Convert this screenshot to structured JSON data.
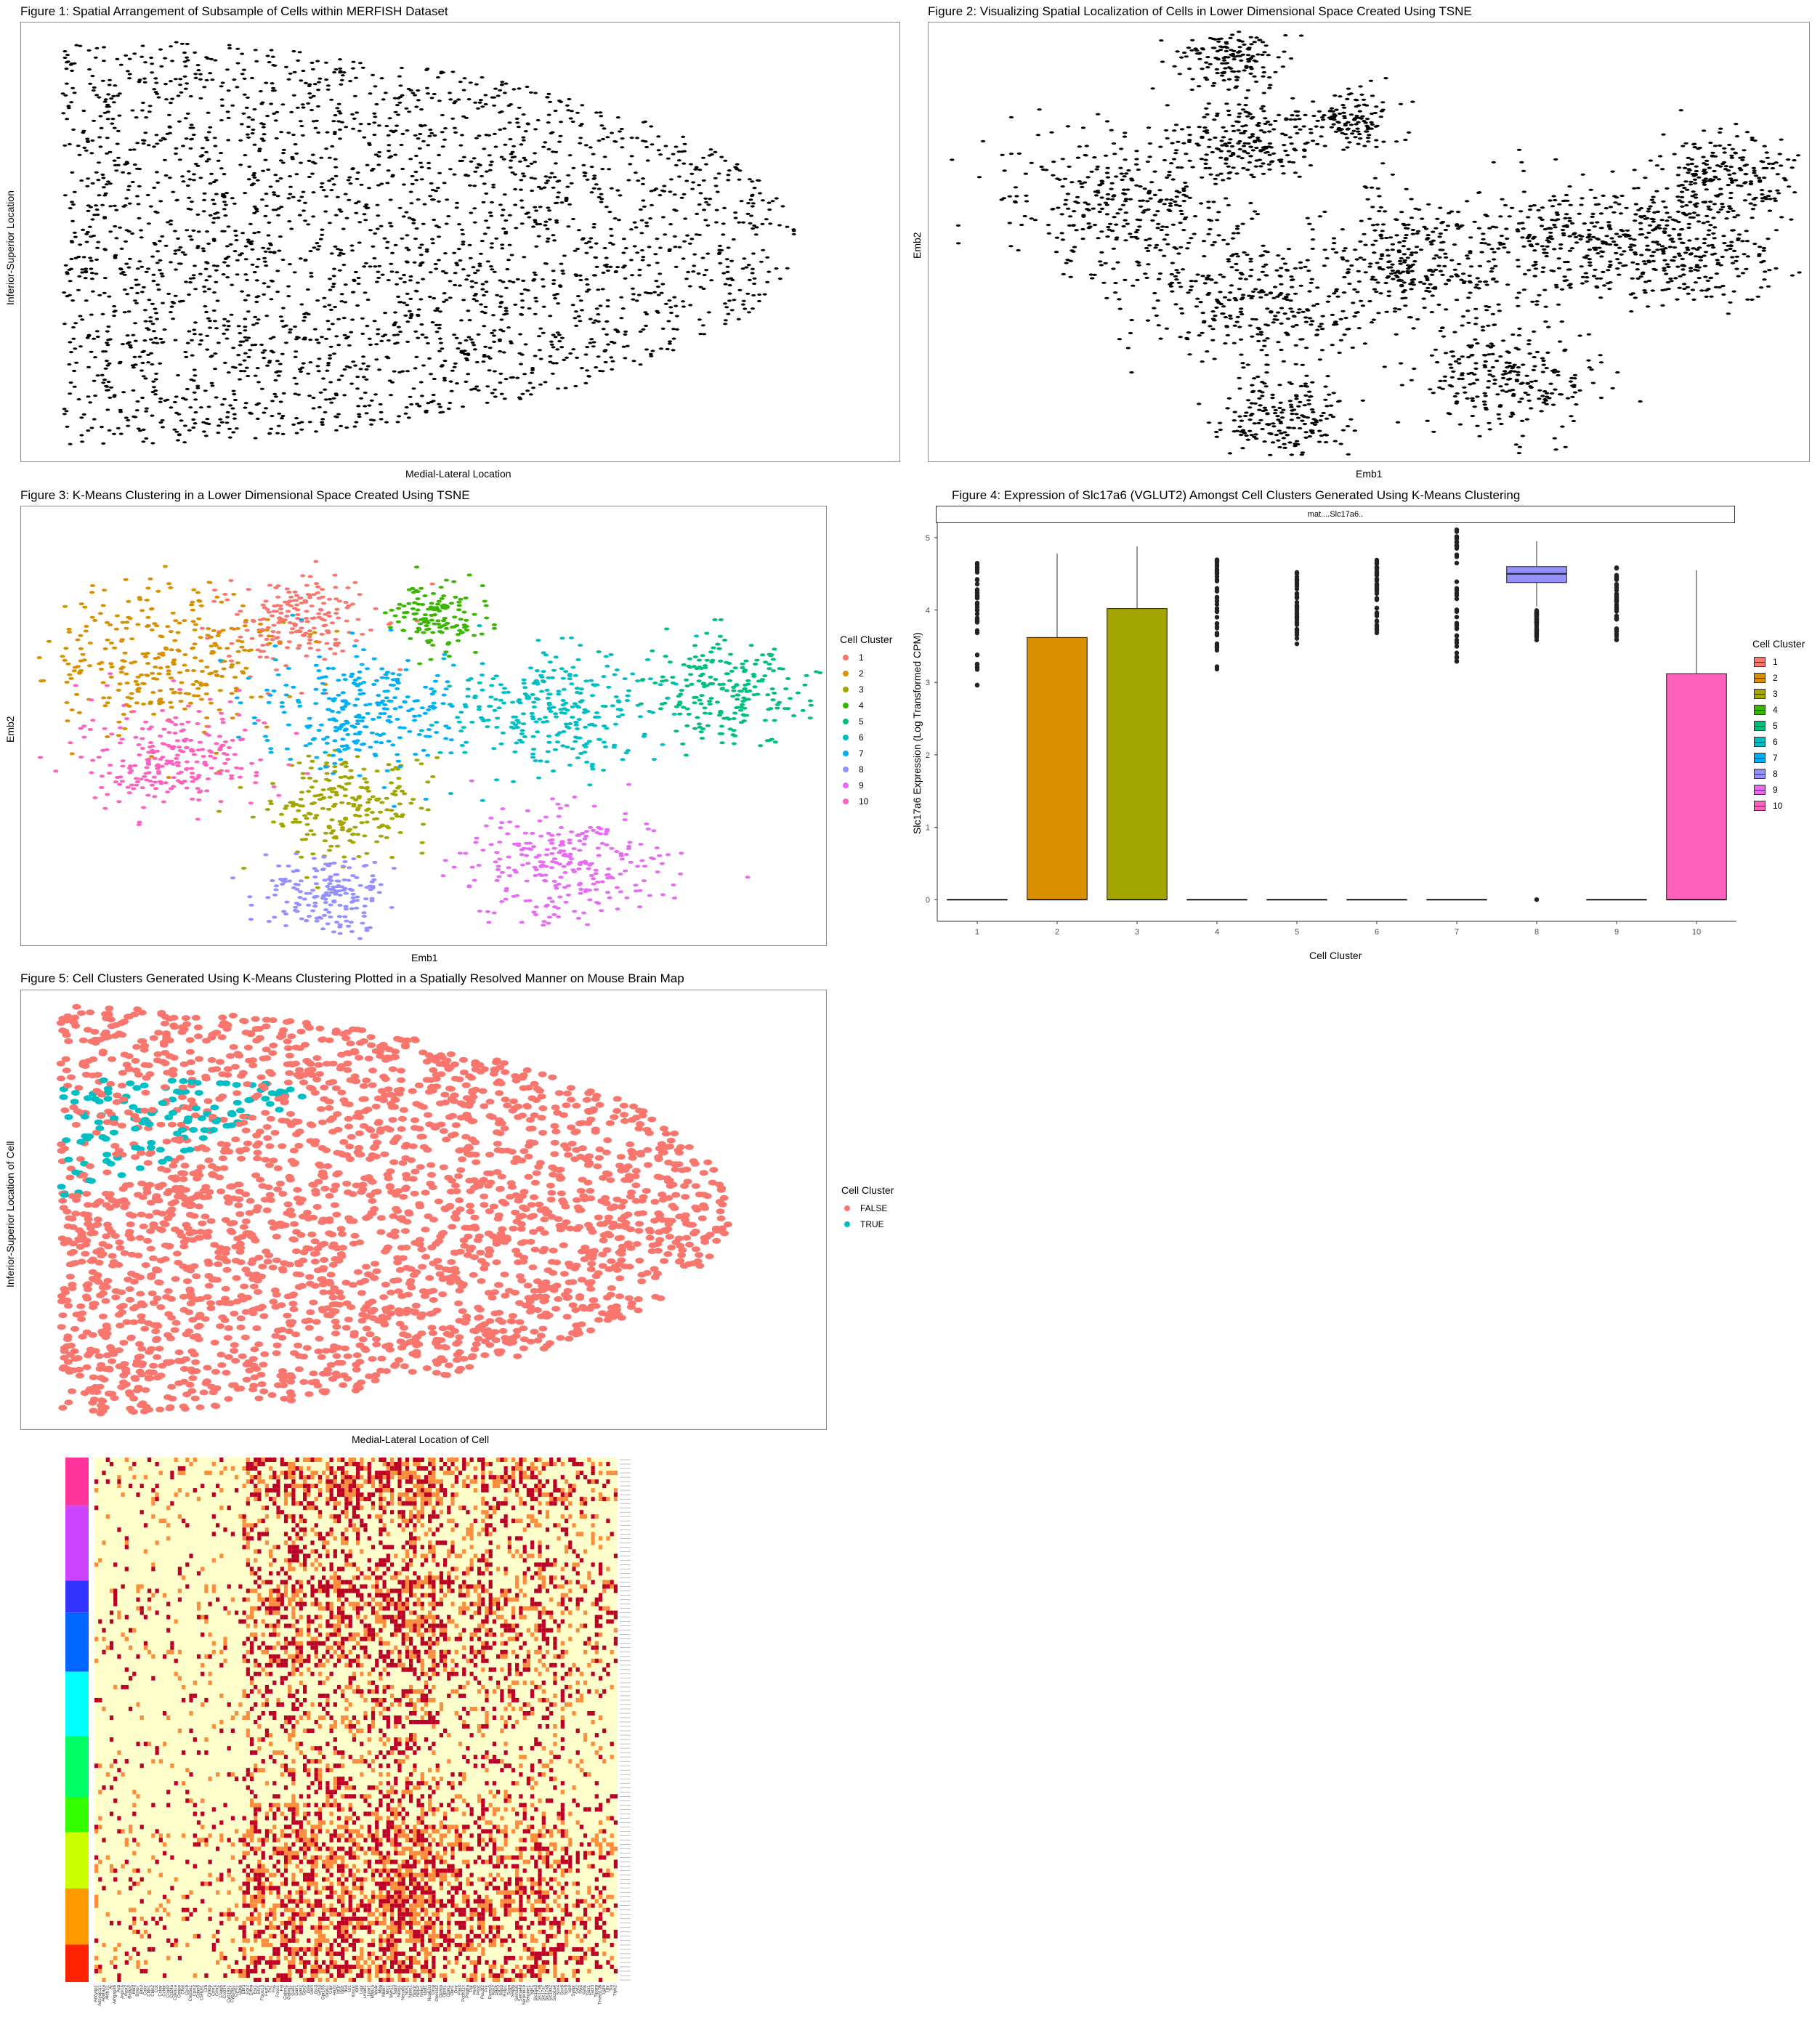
{
  "figures": {
    "fig1": {
      "title": "Figure 1: Spatial Arrangement of Subsample of Cells within MERFISH Dataset",
      "xlabel": "Medial-Lateral Location",
      "ylabel": "Inferior-Superior Location"
    },
    "fig2": {
      "title": "Figure 2: Visualizing Spatial Localization of Cells in Lower Dimensional Space Created Using TSNE",
      "xlabel": "Emb1",
      "ylabel": "Emb2"
    },
    "fig3": {
      "title": "Figure 3: K-Means Clustering in a Lower Dimensional Space Created Using TSNE",
      "xlabel": "Emb1",
      "ylabel": "Emb2",
      "legend_title": "Cell Cluster"
    },
    "fig4": {
      "title": "Figure 4: Expression of Slc17a6 (VGLUT2) Amongst Cell Clusters Generated Using K-Means Clustering",
      "xlabel": "Cell Cluster",
      "ylabel": "Slc17a6 Expression (Log Transformed CPM)",
      "strip": "mat....Slc17a6..",
      "legend_title": "Cell Cluster"
    },
    "fig5": {
      "title": "Figure 5: Cell Clusters Generated Using K-Means Clustering Plotted in a Spatially Resolved Manner on Mouse Brain Map",
      "xlabel": "Medial-Lateral Location of Cell",
      "ylabel": "Inferior-Superior Location of Cell",
      "legend_title": "Cell Cluster"
    }
  },
  "cluster_labels": [
    "1",
    "2",
    "3",
    "4",
    "5",
    "6",
    "7",
    "8",
    "9",
    "10"
  ],
  "cluster_colors": [
    "#F8766D",
    "#D89000",
    "#A3A500",
    "#39B600",
    "#00BF7D",
    "#00BFC4",
    "#00B0F6",
    "#9590FF",
    "#E76BF3",
    "#FF62BC"
  ],
  "fig5_legend": [
    {
      "label": "FALSE",
      "color": "#F8766D"
    },
    {
      "label": "TRUE",
      "color": "#00BFC4"
    }
  ],
  "heatmap": {
    "row_annotation_colors": [
      "#FF3399",
      "#CC44FF",
      "#3333FF",
      "#0066FF",
      "#00FFFF",
      "#00FF66",
      "#33FF00",
      "#CCFF00",
      "#FF9900",
      "#FF2200"
    ],
    "row_annotation_fracs": [
      0.09,
      0.14,
      0.06,
      0.11,
      0.12,
      0.115,
      0.065,
      0.105,
      0.105,
      0.07
    ],
    "low_color": "#FFFFCC",
    "mid_color": "#FD8D3C",
    "high_color": "#BD0026",
    "column_genes": [
      "Adcyap1",
      "Adcyap1r1",
      "Adora2a",
      "Aldh1l1",
      "Ar",
      "Arhgap36",
      "Avp",
      "Avpr1a",
      "Avpr2",
      "Baiap2",
      "Bdnf",
      "Bmp7",
      "Brs3",
      "Calcr",
      "Cbln1",
      "Cbln2",
      "Cck",
      "Cckar",
      "Cckbr",
      "Ccnd2",
      "Cd24a",
      "Cdkn1a",
      "Cenpe",
      "Chat",
      "Coch",
      "Col25a1",
      "Cplx3",
      "Cpne5",
      "Creb3l1",
      "Crh",
      "Crhbp",
      "Crhr1",
      "Crhr2",
      "Cspg5",
      "Cxcl14",
      "Cyp19a1",
      "Cyp26a1",
      "Cyr61",
      "Dgkk",
      "Ebf3",
      "Egr2",
      "Ermn",
      "Esr1",
      "Etv1",
      "Fbxw13",
      "Fezf1",
      "Fn1",
      "Fos",
      "Foxo1",
      "Fst",
      "Gabra1",
      "Gabrg1",
      "Gad1",
      "Galr1",
      "Galr2",
      "Gbx2",
      "Gda",
      "Gem",
      "Gjc3",
      "Glra3",
      "Gpr165",
      "Greb1",
      "Grpr",
      "Htr2c",
      "Igf1r",
      "Igf2r",
      "Irs4",
      "Isl1",
      "Kiss1r",
      "Klf4",
      "Lepr",
      "Lmod1",
      "Lpar1",
      "Man1a",
      "Mc4r",
      "Mbp",
      "Mki67",
      "Mlc1",
      "Myh11",
      "Ndnf",
      "Ndrg1",
      "Necab1",
      "Nos1",
      "Npas1",
      "Npy1r",
      "Npy2r",
      "Ntng1",
      "Ntsr1",
      "Nup62cl",
      "Omp",
      "Onecut2",
      "Opalin",
      "Oprd1",
      "Oprk1",
      "Oprl1",
      "Oxtr",
      "Pak3",
      "Pcdh11x",
      "Pdgfra",
      "Pgr",
      "Plin3",
      "Pnoc",
      "Pou3f2",
      "Prlr",
      "Ramp3",
      "Rgs2",
      "Rgs5",
      "Rnd3",
      "Rxfp1",
      "Scgn",
      "Selplg",
      "Sema3c",
      "Sema4d",
      "Serpinb1b",
      "Serpine1",
      "Sgk1",
      "Slc15a3",
      "Slc17a6",
      "Slc17a7",
      "Slc17a8",
      "Slc18a2",
      "Slco1a4",
      "Sox4",
      "Sox6",
      "Sox8",
      "Sp9",
      "Synpr",
      "Syt2",
      "Syt4",
      "Sytl4",
      "Tacr1",
      "Tacr3",
      "Tiparp",
      "Tmem108",
      "Traf4",
      "Trhr",
      "Ttn",
      "Ttyh2"
    ]
  },
  "chart_data": [
    {
      "type": "scatter",
      "title": "Figure 1: Spatial Arrangement of Subsample of Cells within MERFISH Dataset",
      "xlabel": "Medial-Lateral Location",
      "ylabel": "Inferior-Superior Location",
      "grid": false,
      "color": "#000000",
      "point_count_approx": 3000,
      "shape_description": "half-ellipse brain section, flat left edge, rounded right edge"
    },
    {
      "type": "scatter",
      "title": "Figure 2: Visualizing Spatial Localization of Cells in Lower Dimensional Space Created Using TSNE",
      "xlabel": "Emb1",
      "ylabel": "Emb2",
      "grid": false,
      "color": "#000000",
      "clusters": [
        {
          "cx": 0.22,
          "cy": 0.42,
          "spread": 0.07
        },
        {
          "cx": 0.34,
          "cy": 0.08,
          "spread": 0.03
        },
        {
          "cx": 0.36,
          "cy": 0.27,
          "spread": 0.04
        },
        {
          "cx": 0.38,
          "cy": 0.64,
          "spread": 0.06
        },
        {
          "cx": 0.4,
          "cy": 0.9,
          "spread": 0.04
        },
        {
          "cx": 0.48,
          "cy": 0.22,
          "spread": 0.025
        },
        {
          "cx": 0.55,
          "cy": 0.55,
          "spread": 0.06
        },
        {
          "cx": 0.66,
          "cy": 0.8,
          "spread": 0.05
        },
        {
          "cx": 0.73,
          "cy": 0.49,
          "spread": 0.06
        },
        {
          "cx": 0.86,
          "cy": 0.52,
          "spread": 0.05
        },
        {
          "cx": 0.9,
          "cy": 0.36,
          "spread": 0.045
        }
      ]
    },
    {
      "type": "scatter",
      "title": "Figure 3: K-Means Clustering in a Lower Dimensional Space Created Using TSNE",
      "xlabel": "Emb1",
      "ylabel": "Emb2",
      "legend": "right",
      "series": [
        {
          "name": "1",
          "cx": 0.34,
          "cy": 0.26,
          "spread": 0.045
        },
        {
          "name": "2",
          "cx": 0.17,
          "cy": 0.35,
          "spread": 0.07
        },
        {
          "name": "3",
          "cx": 0.4,
          "cy": 0.68,
          "spread": 0.05
        },
        {
          "name": "4",
          "cx": 0.52,
          "cy": 0.25,
          "spread": 0.03
        },
        {
          "name": "5",
          "cx": 0.88,
          "cy": 0.42,
          "spread": 0.05
        },
        {
          "name": "6",
          "cx": 0.66,
          "cy": 0.47,
          "spread": 0.065
        },
        {
          "name": "7",
          "cx": 0.42,
          "cy": 0.47,
          "spread": 0.06
        },
        {
          "name": "8",
          "cx": 0.38,
          "cy": 0.88,
          "spread": 0.04
        },
        {
          "name": "9",
          "cx": 0.67,
          "cy": 0.81,
          "spread": 0.06
        },
        {
          "name": "10",
          "cx": 0.18,
          "cy": 0.58,
          "spread": 0.055
        }
      ]
    },
    {
      "type": "box",
      "title": "Figure 4: Expression of Slc17a6 (VGLUT2) Amongst Cell Clusters Generated Using K-Means Clustering",
      "xlabel": "Cell Cluster",
      "ylabel": "Slc17a6 Expression (Log Transformed CPM)",
      "categories": [
        "1",
        "2",
        "3",
        "4",
        "5",
        "6",
        "7",
        "8",
        "9",
        "10"
      ],
      "ylim": [
        -0.3,
        5.2
      ],
      "yticks": [
        0,
        1,
        2,
        3,
        4,
        5
      ],
      "boxes": [
        {
          "q1": 0,
          "median": 0,
          "q3": 0,
          "lower": 0,
          "upper": 0,
          "outliers_range": [
            2.85,
            4.65
          ]
        },
        {
          "q1": 0,
          "median": 0,
          "q3": 3.62,
          "lower": 0,
          "upper": 4.78,
          "outliers_range": null
        },
        {
          "q1": 0,
          "median": 0,
          "q3": 4.02,
          "lower": 0,
          "upper": 4.88,
          "outliers_range": null
        },
        {
          "q1": 0,
          "median": 0,
          "q3": 0,
          "lower": 0,
          "upper": 0,
          "outliers_range": [
            3.12,
            4.7
          ]
        },
        {
          "q1": 0,
          "median": 0,
          "q3": 0,
          "lower": 0,
          "upper": 0,
          "outliers_range": [
            3.5,
            4.55
          ]
        },
        {
          "q1": 0,
          "median": 0,
          "q3": 0,
          "lower": 0,
          "upper": 0,
          "outliers_range": [
            3.5,
            4.7
          ]
        },
        {
          "q1": 0,
          "median": 0,
          "q3": 0,
          "lower": 0,
          "upper": 0,
          "outliers_range": [
            3.0,
            5.15
          ]
        },
        {
          "q1": 4.38,
          "median": 4.5,
          "q3": 4.6,
          "lower": 4.05,
          "upper": 4.95,
          "outliers_range": [
            3.55,
            4.0
          ],
          "extra_outlier": 0
        },
        {
          "q1": 0,
          "median": 0,
          "q3": 0,
          "lower": 0,
          "upper": 0,
          "outliers_range": [
            3.35,
            4.6
          ]
        },
        {
          "q1": 0,
          "median": 0,
          "q3": 3.12,
          "lower": 0,
          "upper": 4.55,
          "outliers_range": null
        }
      ]
    },
    {
      "type": "scatter",
      "title": "Figure 5: Cell Clusters Generated Using K-Means Clustering Plotted in a Spatially Resolved Manner on Mouse Brain Map",
      "xlabel": "Medial-Lateral Location of Cell",
      "ylabel": "Inferior-Superior Location of Cell",
      "legend": "right",
      "series": [
        {
          "name": "FALSE",
          "color": "#F8766D"
        },
        {
          "name": "TRUE",
          "color": "#00BFC4",
          "region": "left-middle band (striatum)"
        }
      ]
    },
    {
      "type": "heatmap",
      "rows_approx": 400,
      "columns_approx": 140,
      "row_groups": 10
    }
  ]
}
